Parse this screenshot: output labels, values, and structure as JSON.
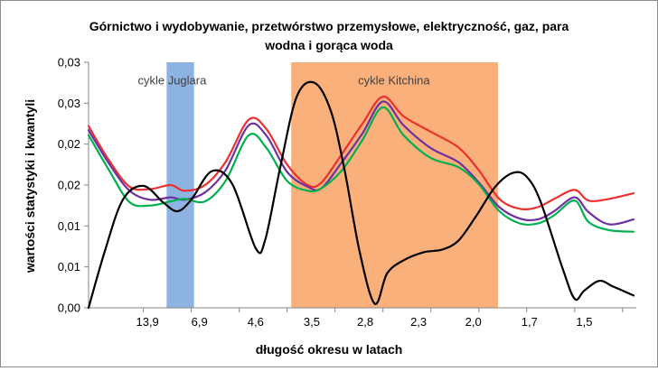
{
  "chart_data": {
    "type": "line",
    "title_lines": [
      "Górnictwo i wydobywanie, przetwórstwo przemysłowe, elektryczność, gaz, para",
      "wodna i gorąca woda"
    ],
    "xlabel": "długość okresu w latach",
    "ylabel": "wartości statystyki i kwantyli",
    "ylim": [
      0,
      0.03
    ],
    "y_ticks": [
      0,
      0.005,
      0.01,
      0.015,
      0.02,
      0.025,
      0.03
    ],
    "y_tick_labels": [
      "0,00",
      "0,01",
      "0,01",
      "0,02",
      "0,02",
      "0,03",
      "0,03"
    ],
    "x_domain": [
      0,
      40
    ],
    "x_tick_positions": [
      4,
      7.5,
      11,
      14.5,
      18,
      21.5,
      25,
      28.5,
      32,
      35.5,
      39
    ],
    "x_tick_labels": [
      "13,9",
      "6,9",
      "4,6",
      "3,5",
      "2,8",
      "2,3",
      "2,0",
      "1,7",
      "1,5"
    ],
    "x_label_positions": [
      4.3,
      8.1,
      12.2,
      16.3,
      20.2,
      24.1,
      28.1,
      32.2,
      36.2
    ],
    "grid": false,
    "bands": [
      {
        "label": "cykle Juglara",
        "x_range": [
          5.7,
          7.7
        ],
        "color": "#8db3e2",
        "label_x": 6.1,
        "label_y": 0.0273
      },
      {
        "label": "cykle Kitchina",
        "x_range": [
          14.8,
          29.9
        ],
        "color": "#fab07a",
        "label_x": 22.3,
        "label_y": 0.0273
      }
    ],
    "series": [
      {
        "color": "#ed2f2f",
        "points": [
          [
            0,
            0.0222
          ],
          [
            1.5,
            0.018
          ],
          [
            3,
            0.0148
          ],
          [
            4.5,
            0.0145
          ],
          [
            6,
            0.015
          ],
          [
            7,
            0.0143
          ],
          [
            8.5,
            0.015
          ],
          [
            10,
            0.0178
          ],
          [
            11.7,
            0.023
          ],
          [
            13,
            0.0218
          ],
          [
            14.5,
            0.0175
          ],
          [
            16,
            0.015
          ],
          [
            17,
            0.0153
          ],
          [
            18.5,
            0.0188
          ],
          [
            20,
            0.0225
          ],
          [
            21.5,
            0.0258
          ],
          [
            23,
            0.0234
          ],
          [
            25,
            0.0215
          ],
          [
            27,
            0.0196
          ],
          [
            28.5,
            0.0168
          ],
          [
            30,
            0.0133
          ],
          [
            31.5,
            0.0121
          ],
          [
            32.8,
            0.0123
          ],
          [
            34,
            0.0133
          ],
          [
            35.5,
            0.0144
          ],
          [
            36.5,
            0.0131
          ],
          [
            38,
            0.0133
          ],
          [
            39.8,
            0.014
          ]
        ]
      },
      {
        "color": "#7030a0",
        "points": [
          [
            0,
            0.0217
          ],
          [
            1.5,
            0.0176
          ],
          [
            3,
            0.0143
          ],
          [
            4.5,
            0.0132
          ],
          [
            6,
            0.0135
          ],
          [
            7,
            0.0132
          ],
          [
            8.5,
            0.0141
          ],
          [
            10,
            0.0168
          ],
          [
            11.7,
            0.0223
          ],
          [
            13,
            0.021
          ],
          [
            14.5,
            0.0166
          ],
          [
            16,
            0.0148
          ],
          [
            17,
            0.0146
          ],
          [
            18.5,
            0.0178
          ],
          [
            20,
            0.0213
          ],
          [
            21.5,
            0.0252
          ],
          [
            23,
            0.0223
          ],
          [
            25,
            0.0195
          ],
          [
            27,
            0.0178
          ],
          [
            28.5,
            0.0153
          ],
          [
            30,
            0.0123
          ],
          [
            31.5,
            0.0109
          ],
          [
            32.8,
            0.0108
          ],
          [
            34,
            0.0118
          ],
          [
            35.5,
            0.0135
          ],
          [
            36.5,
            0.0117
          ],
          [
            38,
            0.0102
          ],
          [
            39.8,
            0.0108
          ]
        ]
      },
      {
        "color": "#00b050",
        "points": [
          [
            0,
            0.0211
          ],
          [
            1.5,
            0.0168
          ],
          [
            3,
            0.0129
          ],
          [
            4.5,
            0.0125
          ],
          [
            6,
            0.013
          ],
          [
            7,
            0.0133
          ],
          [
            8.5,
            0.013
          ],
          [
            10,
            0.0155
          ],
          [
            11.7,
            0.0211
          ],
          [
            13,
            0.0195
          ],
          [
            14.5,
            0.0155
          ],
          [
            16,
            0.0143
          ],
          [
            17,
            0.0146
          ],
          [
            18.5,
            0.0168
          ],
          [
            20,
            0.0205
          ],
          [
            21.5,
            0.0245
          ],
          [
            23,
            0.0211
          ],
          [
            25,
            0.0183
          ],
          [
            27,
            0.0172
          ],
          [
            28.5,
            0.0151
          ],
          [
            30,
            0.0118
          ],
          [
            31.5,
            0.0103
          ],
          [
            32.8,
            0.0103
          ],
          [
            34,
            0.0113
          ],
          [
            35.5,
            0.0131
          ],
          [
            36.5,
            0.0105
          ],
          [
            38,
            0.0095
          ],
          [
            39.8,
            0.0093
          ]
        ]
      },
      {
        "color": "#000000",
        "points": [
          [
            0,
            0
          ],
          [
            1.2,
            0.007
          ],
          [
            2.5,
            0.0132
          ],
          [
            4,
            0.0149
          ],
          [
            5.5,
            0.0128
          ],
          [
            6.5,
            0.0118
          ],
          [
            7.5,
            0.0132
          ],
          [
            9,
            0.0167
          ],
          [
            10.5,
            0.0151
          ],
          [
            12.2,
            0.0073
          ],
          [
            12.9,
            0.0083
          ],
          [
            14,
            0.0172
          ],
          [
            15.2,
            0.0258
          ],
          [
            16.5,
            0.0275
          ],
          [
            17.7,
            0.024
          ],
          [
            18.7,
            0.0168
          ],
          [
            19.8,
            0.0068
          ],
          [
            20.9,
            0.0005
          ],
          [
            21.8,
            0.0042
          ],
          [
            23,
            0.0058
          ],
          [
            24.5,
            0.0068
          ],
          [
            25.8,
            0.0071
          ],
          [
            27,
            0.0082
          ],
          [
            28.3,
            0.0112
          ],
          [
            29.7,
            0.0148
          ],
          [
            31,
            0.0165
          ],
          [
            32,
            0.016
          ],
          [
            33,
            0.013
          ],
          [
            34.6,
            0.0049
          ],
          [
            35.5,
            0.0011
          ],
          [
            36.2,
            0.0021
          ],
          [
            37.3,
            0.0033
          ],
          [
            38.3,
            0.0026
          ],
          [
            39.8,
            0.0015
          ]
        ]
      }
    ]
  }
}
